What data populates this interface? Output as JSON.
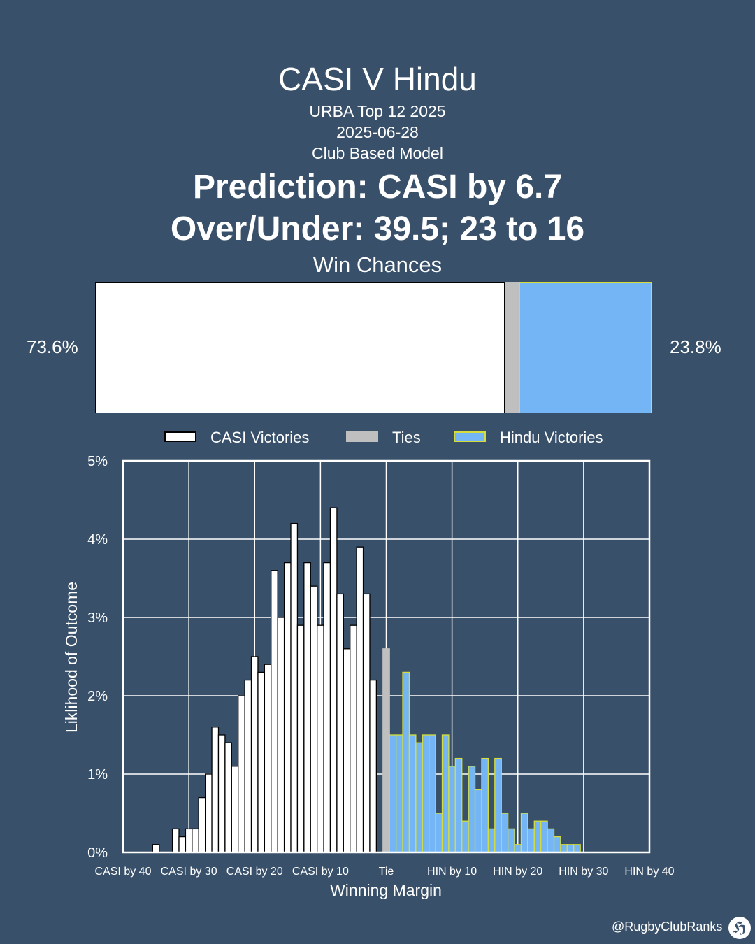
{
  "header": {
    "title": "CASI V Hindu",
    "competition": "URBA Top 12 2025",
    "date": "2025-06-28",
    "model": "Club Based Model",
    "prediction": "Prediction: CASI by 6.7",
    "over_under": "Over/Under: 39.5; 23 to 16",
    "win_chances_label": "Win Chances"
  },
  "win_chances": {
    "left_label": "73.6%",
    "right_label": "23.8%",
    "casi": 73.6,
    "tie": 2.6,
    "hindu": 23.8
  },
  "legend": {
    "casi": "CASI Victories",
    "ties": "Ties",
    "hindu": "Hindu Victories"
  },
  "colors": {
    "background": "#385069",
    "casi": "#ffffff",
    "tie": "#bfbfbf",
    "hindu": "#74b5f5",
    "hindu_edge": "#d6dd3a",
    "casi_edge": "#000000"
  },
  "chart_data": {
    "type": "bar",
    "title": "",
    "xlabel": "Winning Margin",
    "ylabel": "Liklihood of Outcome",
    "xlim": [
      -40,
      40
    ],
    "ylim": [
      0,
      5
    ],
    "x_ticks": [
      {
        "value": -40,
        "label": "CASI by 40"
      },
      {
        "value": -30,
        "label": "CASI by 30"
      },
      {
        "value": -20,
        "label": "CASI by 20"
      },
      {
        "value": -10,
        "label": "CASI by 10"
      },
      {
        "value": 0,
        "label": "Tie"
      },
      {
        "value": 10,
        "label": "HIN by 10"
      },
      {
        "value": 20,
        "label": "HIN by 20"
      },
      {
        "value": 30,
        "label": "HIN by 30"
      },
      {
        "value": 40,
        "label": "HIN by 40"
      }
    ],
    "y_ticks": [
      {
        "value": 0,
        "label": "0%"
      },
      {
        "value": 1,
        "label": "1%"
      },
      {
        "value": 2,
        "label": "2%"
      },
      {
        "value": 3,
        "label": "3%"
      },
      {
        "value": 4,
        "label": "4%"
      },
      {
        "value": 5,
        "label": "5%"
      }
    ],
    "grid": true,
    "series": [
      {
        "name": "CASI Victories",
        "x": [
          -35,
          -34,
          -33,
          -32,
          -31,
          -30,
          -29,
          -28,
          -27,
          -26,
          -25,
          -24,
          -23,
          -22,
          -21,
          -20,
          -19,
          -18,
          -17,
          -16,
          -15,
          -14,
          -13,
          -12,
          -11,
          -10,
          -9,
          -8,
          -7,
          -6,
          -5,
          -4,
          -3,
          -2,
          -1
        ],
        "values": [
          0.1,
          0,
          0,
          0.3,
          0.2,
          0.3,
          0.3,
          0.7,
          1.0,
          1.6,
          1.5,
          1.4,
          1.1,
          2.0,
          2.2,
          2.5,
          2.3,
          2.4,
          3.6,
          3.0,
          3.7,
          4.2,
          2.9,
          3.7,
          3.4,
          2.9,
          3.7,
          4.4,
          3.3,
          2.6,
          2.9,
          3.9,
          3.3,
          2.2,
          0
        ]
      },
      {
        "name": "Ties",
        "x": [
          0
        ],
        "values": [
          2.6
        ]
      },
      {
        "name": "Hindu Victories",
        "x": [
          1,
          2,
          3,
          4,
          5,
          6,
          7,
          8,
          9,
          10,
          11,
          12,
          13,
          14,
          15,
          16,
          17,
          18,
          19,
          20,
          21,
          22,
          23,
          24,
          25,
          26,
          27,
          28,
          29,
          30
        ],
        "values": [
          1.5,
          1.5,
          2.3,
          1.5,
          1.4,
          1.5,
          1.5,
          0.5,
          1.5,
          1.1,
          1.2,
          0.4,
          1.1,
          0.8,
          1.2,
          0.3,
          1.2,
          0.5,
          0.3,
          0.1,
          0.5,
          0.3,
          0.4,
          0.4,
          0.3,
          0.2,
          0.1,
          0.1,
          0.1,
          0
        ]
      }
    ]
  },
  "footer": {
    "handle": "@RugbyClubRanks",
    "logo_icon": "goalposts-logo-icon"
  }
}
